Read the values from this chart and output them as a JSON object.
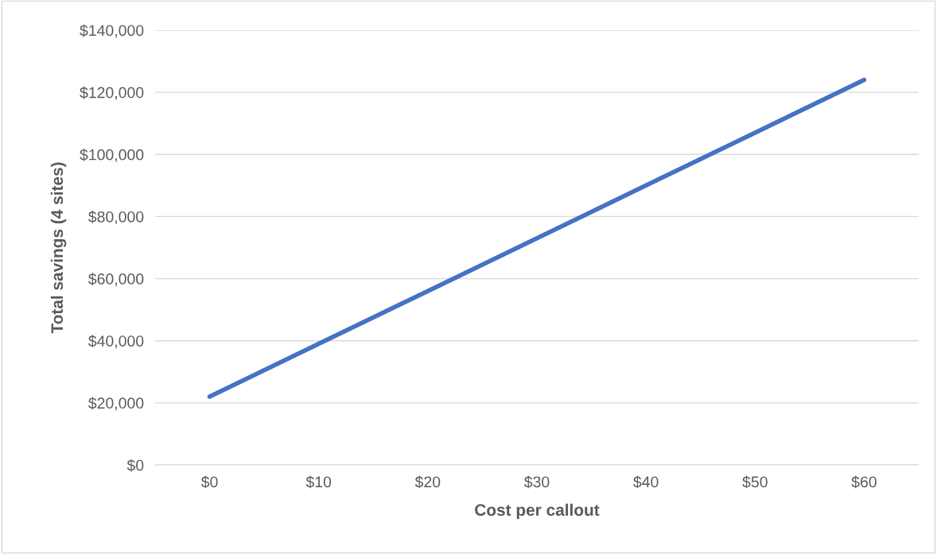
{
  "chart_data": {
    "type": "line",
    "xlabel": "Cost per callout",
    "ylabel": "Total savings (4 sites)",
    "categories": [
      "$0",
      "$10",
      "$20",
      "$30",
      "$40",
      "$50",
      "$60"
    ],
    "series": [
      {
        "color": "#4472c4",
        "values": [
          22000,
          39000,
          56000,
          73000,
          90000,
          107000,
          124000
        ]
      }
    ],
    "ylim": [
      0,
      140000
    ],
    "yticks": [
      {
        "value": 0,
        "label": "$0"
      },
      {
        "value": 20000,
        "label": "$20,000"
      },
      {
        "value": 40000,
        "label": "$40,000"
      },
      {
        "value": 60000,
        "label": "$60,000"
      },
      {
        "value": 80000,
        "label": "$80,000"
      },
      {
        "value": 100000,
        "label": "$100,000"
      },
      {
        "value": 120000,
        "label": "$120,000"
      },
      {
        "value": 140000,
        "label": "$140,000"
      }
    ],
    "grid": "y",
    "legend": false,
    "marker": "none",
    "line_style": "solid"
  }
}
